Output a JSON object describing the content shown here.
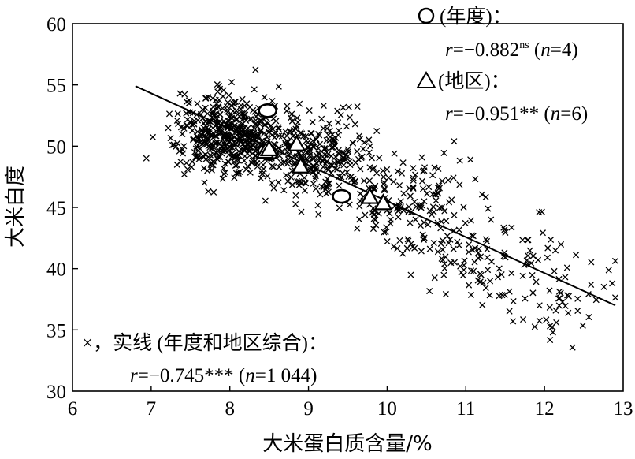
{
  "chart_data": {
    "type": "scatter",
    "xlabel": "大米蛋白质含量/%",
    "ylabel": "大米白度",
    "xlim": [
      6,
      13
    ],
    "ylim": [
      30,
      60
    ],
    "xticks": [
      "6",
      "7",
      "8",
      "9",
      "10",
      "11",
      "12",
      "13"
    ],
    "yticks": [
      "30",
      "35",
      "40",
      "45",
      "50",
      "55",
      "60"
    ],
    "grid": false,
    "legend_position": "inside, top-right and bottom-left",
    "fit_line": {
      "x": [
        6.8,
        12.9
      ],
      "y": [
        54.9,
        37.0
      ]
    },
    "series": [
      {
        "marker": "x",
        "legend_text": "×，实线 (年度和地区综合)：",
        "stat_text": "r=−0.745*** (n=1 044)",
        "count": 1044,
        "clusters": [
          {
            "cx": 8.0,
            "cy": 51.0,
            "sx": 0.5,
            "sy": 2.3,
            "n": 480
          },
          {
            "cx": 9.1,
            "cy": 49.0,
            "sx": 0.5,
            "sy": 2.6,
            "n": 260
          },
          {
            "cx": 10.2,
            "cy": 45.5,
            "sx": 0.6,
            "sy": 2.8,
            "n": 150
          },
          {
            "cx": 11.2,
            "cy": 41.0,
            "sx": 0.7,
            "sy": 3.0,
            "n": 110
          },
          {
            "cx": 12.2,
            "cy": 37.8,
            "sx": 0.45,
            "sy": 2.5,
            "n": 44
          }
        ]
      },
      {
        "marker": "circle",
        "legend_text": "(年度)：",
        "stat_text": "r=−0.882ns (n=4)",
        "x": [
          8.48,
          8.47,
          8.5,
          9.42
        ],
        "y": [
          52.9,
          49.6,
          49.4,
          45.9
        ]
      },
      {
        "marker": "triangle",
        "legend_text": "(地区)：",
        "stat_text": "r=−0.951** (n=6)",
        "x": [
          8.45,
          8.5,
          8.85,
          8.9,
          9.78,
          9.95
        ],
        "y": [
          49.5,
          49.7,
          50.1,
          48.3,
          45.8,
          45.3
        ]
      }
    ],
    "annotations": {
      "circle_legend": "(年度)：",
      "circle_r": "r",
      "circle_eq": "=−0.882",
      "circle_sup": "ns",
      "circle_n_open": " (",
      "circle_n": "n",
      "circle_n_close": "=4)",
      "triangle_legend": "(地区)：",
      "triangle_r": "r",
      "triangle_eq": "=−0.951** (",
      "triangle_n": "n",
      "triangle_n_close": "=6)",
      "cross_legend": "×，实线 (年度和地区综合)：",
      "cross_r": "r",
      "cross_eq": "=−0.745*** (",
      "cross_n": "n",
      "cross_n_close": "=1 044)"
    }
  }
}
